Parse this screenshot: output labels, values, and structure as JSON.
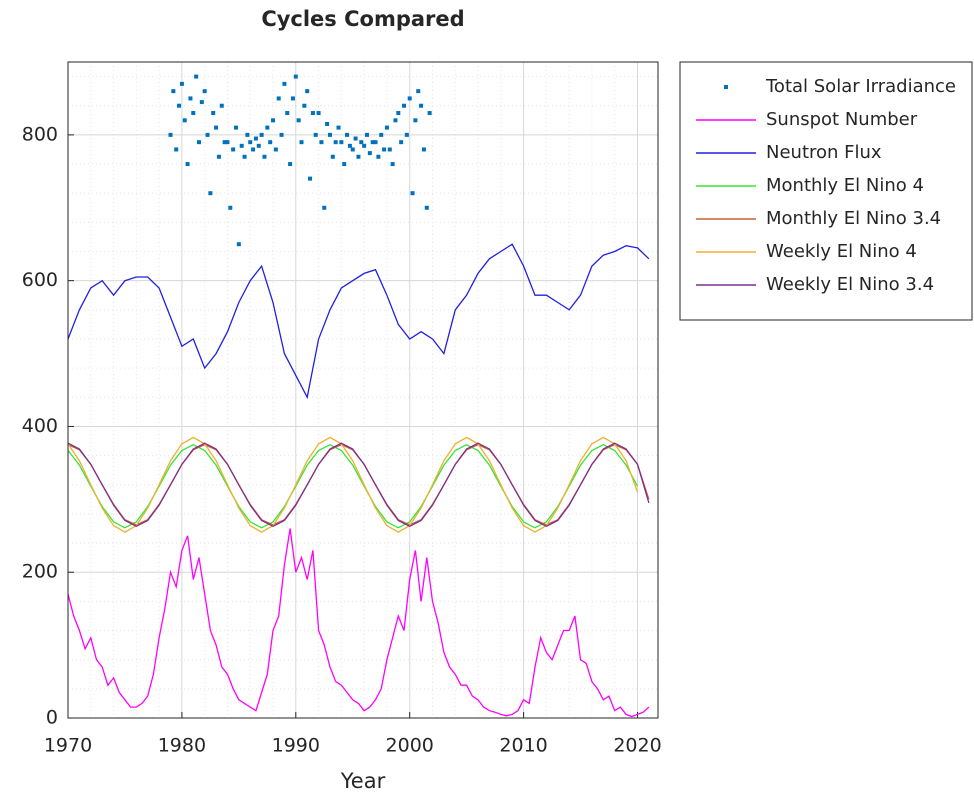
{
  "chart_data": {
    "type": "line",
    "title": "Cycles Compared",
    "x_label": "Year",
    "xlim": [
      1970,
      2021.8
    ],
    "ylim": [
      0,
      900
    ],
    "xticks": [
      1970,
      1980,
      1990,
      2000,
      2010,
      2020
    ],
    "yticks": [
      0,
      200,
      400,
      600,
      800
    ],
    "grid": true,
    "minor_grid": true,
    "legend_position": "outside-right",
    "series": [
      {
        "name": "Total Solar Irradiance",
        "type": "scatter",
        "color": "#0072bd",
        "x": [
          1979,
          1979.25,
          1979.5,
          1979.75,
          1980,
          1980.25,
          1980.5,
          1980.75,
          1981,
          1981.25,
          1981.5,
          1981.75,
          1982,
          1982.25,
          1982.5,
          1982.75,
          1983,
          1983.25,
          1983.5,
          1983.75,
          1984,
          1984.25,
          1984.5,
          1984.75,
          1985,
          1985.25,
          1985.5,
          1985.75,
          1986,
          1986.25,
          1986.5,
          1986.75,
          1987,
          1987.25,
          1987.5,
          1987.75,
          1988,
          1988.25,
          1988.5,
          1988.75,
          1989,
          1989.25,
          1989.5,
          1989.75,
          1990,
          1990.25,
          1990.5,
          1990.75,
          1991,
          1991.25,
          1991.5,
          1991.75,
          1992,
          1992.25,
          1992.5,
          1992.75,
          1993,
          1993.25,
          1993.5,
          1993.75,
          1994,
          1994.25,
          1994.5,
          1994.75,
          1995,
          1995.25,
          1995.5,
          1995.75,
          1996,
          1996.25,
          1996.5,
          1996.75,
          1997,
          1997.25,
          1997.5,
          1997.75,
          1998,
          1998.25,
          1998.5,
          1998.75,
          1999,
          1999.25,
          1999.5,
          1999.75,
          2000,
          2000.25,
          2000.5,
          2000.75,
          2001,
          2001.25,
          2001.5,
          2001.75
        ],
        "values": [
          800,
          860,
          780,
          840,
          870,
          820,
          760,
          850,
          830,
          880,
          790,
          845,
          860,
          800,
          720,
          830,
          810,
          770,
          840,
          790,
          790,
          700,
          780,
          810,
          650,
          785,
          770,
          800,
          790,
          780,
          795,
          785,
          800,
          770,
          810,
          790,
          820,
          780,
          850,
          800,
          870,
          830,
          760,
          850,
          880,
          820,
          790,
          840,
          860,
          740,
          830,
          800,
          830,
          790,
          700,
          815,
          800,
          770,
          790,
          810,
          790,
          760,
          800,
          785,
          780,
          795,
          770,
          790,
          785,
          800,
          775,
          790,
          790,
          770,
          800,
          780,
          810,
          780,
          760,
          820,
          830,
          790,
          840,
          800,
          850,
          720,
          820,
          860,
          840,
          780,
          700,
          830
        ]
      },
      {
        "name": "Sunspot Number",
        "color": "#ff00ff",
        "x": [
          1970,
          1970.5,
          1971,
          1971.5,
          1972,
          1972.5,
          1973,
          1973.5,
          1974,
          1974.5,
          1975,
          1975.5,
          1976,
          1976.5,
          1977,
          1977.5,
          1978,
          1978.5,
          1979,
          1979.5,
          1980,
          1980.5,
          1981,
          1981.5,
          1982,
          1982.5,
          1983,
          1983.5,
          1984,
          1984.5,
          1985,
          1985.5,
          1986,
          1986.5,
          1987,
          1987.5,
          1988,
          1988.5,
          1989,
          1989.5,
          1990,
          1990.5,
          1991,
          1991.5,
          1992,
          1992.5,
          1993,
          1993.5,
          1994,
          1994.5,
          1995,
          1995.5,
          1996,
          1996.5,
          1997,
          1997.5,
          1998,
          1998.5,
          1999,
          1999.5,
          2000,
          2000.5,
          2001,
          2001.5,
          2002,
          2002.5,
          2003,
          2003.5,
          2004,
          2004.5,
          2005,
          2005.5,
          2006,
          2006.5,
          2007,
          2007.5,
          2008,
          2008.5,
          2009,
          2009.5,
          2010,
          2010.5,
          2011,
          2011.5,
          2012,
          2012.5,
          2013,
          2013.5,
          2014,
          2014.5,
          2015,
          2015.5,
          2016,
          2016.5,
          2017,
          2017.5,
          2018,
          2018.5,
          2019,
          2019.5,
          2020,
          2020.5,
          2021
        ],
        "values": [
          170,
          140,
          120,
          95,
          110,
          80,
          70,
          45,
          55,
          35,
          25,
          15,
          15,
          20,
          30,
          60,
          110,
          150,
          200,
          180,
          230,
          250,
          190,
          220,
          170,
          120,
          100,
          70,
          60,
          40,
          25,
          20,
          15,
          10,
          35,
          60,
          120,
          140,
          210,
          260,
          200,
          220,
          190,
          230,
          120,
          100,
          70,
          50,
          45,
          35,
          25,
          20,
          10,
          15,
          25,
          40,
          80,
          110,
          140,
          120,
          190,
          230,
          160,
          220,
          160,
          130,
          90,
          70,
          60,
          45,
          45,
          30,
          25,
          15,
          10,
          8,
          5,
          3,
          5,
          10,
          25,
          20,
          70,
          110,
          90,
          80,
          100,
          120,
          120,
          140,
          80,
          75,
          50,
          40,
          25,
          30,
          10,
          15,
          5,
          2,
          5,
          8,
          15
        ]
      },
      {
        "name": "Neutron Flux",
        "color": "#2020e0",
        "x": [
          1970,
          1971,
          1972,
          1973,
          1974,
          1975,
          1976,
          1977,
          1978,
          1979,
          1980,
          1981,
          1982,
          1983,
          1984,
          1985,
          1986,
          1987,
          1988,
          1989,
          1990,
          1991,
          1992,
          1993,
          1994,
          1995,
          1996,
          1997,
          1998,
          1999,
          2000,
          2001,
          2002,
          2003,
          2004,
          2005,
          2006,
          2007,
          2008,
          2009,
          2010,
          2011,
          2012,
          2013,
          2014,
          2015,
          2016,
          2017,
          2018,
          2019,
          2020,
          2021
        ],
        "values": [
          520,
          560,
          590,
          600,
          580,
          600,
          605,
          605,
          590,
          550,
          510,
          520,
          480,
          500,
          530,
          570,
          600,
          620,
          570,
          500,
          470,
          440,
          520,
          560,
          590,
          600,
          610,
          615,
          580,
          540,
          520,
          530,
          520,
          500,
          560,
          580,
          610,
          630,
          640,
          650,
          620,
          580,
          580,
          570,
          560,
          580,
          620,
          635,
          640,
          648,
          645,
          630
        ]
      },
      {
        "name": "Monthly El Nino 4",
        "color": "#33e633",
        "x": [
          1970,
          1971,
          1972,
          1973,
          1974,
          1975,
          1976,
          1977,
          1978,
          1979,
          1980,
          1981,
          1982,
          1983,
          1984,
          1985,
          1986,
          1987,
          1988,
          1989,
          1990,
          1991,
          1992,
          1993,
          1994,
          1995,
          1996,
          1997,
          1998,
          1999,
          2000,
          2001,
          2002,
          2003,
          2004,
          2005,
          2006,
          2007,
          2008,
          2009,
          2010,
          2011,
          2012,
          2013,
          2014,
          2015,
          2016,
          2017,
          2018,
          2019,
          2020
        ],
        "values": [
          367,
          347,
          318,
          290,
          269,
          261,
          269,
          290,
          318,
          347,
          367,
          375,
          367,
          347,
          318,
          290,
          269,
          261,
          269,
          290,
          318,
          347,
          367,
          375,
          367,
          347,
          318,
          290,
          269,
          261,
          269,
          290,
          318,
          347,
          367,
          375,
          367,
          347,
          318,
          290,
          269,
          261,
          269,
          290,
          318,
          347,
          367,
          375,
          367,
          347,
          318
        ]
      },
      {
        "name": "Monthly El Nino 3.4",
        "color": "#c8603a",
        "x": [
          1970,
          1971,
          1972,
          1973,
          1974,
          1975,
          1976,
          1977,
          1978,
          1979,
          1980,
          1981,
          1982,
          1983,
          1984,
          1985,
          1986,
          1987,
          1988,
          1989,
          1990,
          1991,
          1992,
          1993,
          1994,
          1995,
          1996,
          1997,
          1998,
          1999,
          2000,
          2001,
          2002,
          2003,
          2004,
          2005,
          2006,
          2007,
          2008,
          2009,
          2010,
          2011,
          2012,
          2013,
          2014,
          2015,
          2016,
          2017,
          2018,
          2019,
          2020,
          2021
        ],
        "values": [
          375,
          368,
          348,
          320,
          293,
          272,
          265,
          272,
          293,
          320,
          348,
          368,
          375,
          368,
          348,
          320,
          293,
          272,
          265,
          272,
          293,
          320,
          348,
          368,
          375,
          368,
          348,
          320,
          293,
          272,
          265,
          272,
          293,
          320,
          348,
          368,
          375,
          368,
          348,
          320,
          293,
          272,
          265,
          272,
          293,
          320,
          348,
          368,
          375,
          368,
          348,
          300
        ]
      },
      {
        "name": "Weekly El Nino 4",
        "color": "#f0b030",
        "x": [
          1970,
          1971,
          1972,
          1973,
          1974,
          1975,
          1976,
          1977,
          1978,
          1979,
          1980,
          1981,
          1982,
          1983,
          1984,
          1985,
          1986,
          1987,
          1988,
          1989,
          1990,
          1991,
          1992,
          1993,
          1994,
          1995,
          1996,
          1997,
          1998,
          1999,
          2000,
          2001,
          2002,
          2003,
          2004,
          2005,
          2006,
          2007,
          2008,
          2009,
          2010,
          2011,
          2012,
          2013,
          2014,
          2015,
          2016,
          2017,
          2018,
          2019,
          2020
        ],
        "values": [
          376,
          353,
          320,
          288,
          264,
          255,
          264,
          288,
          320,
          353,
          376,
          385,
          376,
          353,
          320,
          288,
          264,
          255,
          264,
          288,
          320,
          353,
          376,
          385,
          376,
          353,
          320,
          288,
          264,
          255,
          264,
          288,
          320,
          353,
          376,
          385,
          376,
          353,
          320,
          288,
          264,
          255,
          264,
          288,
          320,
          353,
          376,
          385,
          376,
          353,
          310
        ]
      },
      {
        "name": "Weekly El Nino 3.4",
        "color": "#7e2f8e",
        "x": [
          1970,
          1971,
          1972,
          1973,
          1974,
          1975,
          1976,
          1977,
          1978,
          1979,
          1980,
          1981,
          1982,
          1983,
          1984,
          1985,
          1986,
          1987,
          1988,
          1989,
          1990,
          1991,
          1992,
          1993,
          1994,
          1995,
          1996,
          1997,
          1998,
          1999,
          2000,
          2001,
          2002,
          2003,
          2004,
          2005,
          2006,
          2007,
          2008,
          2009,
          2010,
          2011,
          2012,
          2013,
          2014,
          2015,
          2016,
          2017,
          2018,
          2019,
          2020,
          2021
        ],
        "values": [
          377,
          369,
          348,
          320,
          292,
          271,
          263,
          271,
          292,
          320,
          348,
          369,
          377,
          369,
          348,
          320,
          292,
          271,
          263,
          271,
          292,
          320,
          348,
          369,
          377,
          369,
          348,
          320,
          292,
          271,
          263,
          271,
          292,
          320,
          348,
          369,
          377,
          369,
          348,
          320,
          292,
          271,
          263,
          271,
          292,
          320,
          348,
          369,
          377,
          369,
          348,
          295
        ]
      }
    ]
  }
}
